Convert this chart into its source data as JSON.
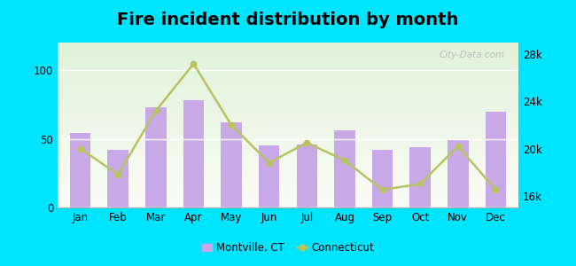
{
  "title": "Fire incident distribution by month",
  "months": [
    "Jan",
    "Feb",
    "Mar",
    "Apr",
    "May",
    "Jun",
    "Jul",
    "Aug",
    "Sep",
    "Oct",
    "Nov",
    "Dec"
  ],
  "bar_values": [
    54,
    42,
    73,
    78,
    62,
    45,
    46,
    56,
    42,
    44,
    50,
    70
  ],
  "line_values": [
    20000,
    17800,
    23200,
    27200,
    22000,
    18800,
    20500,
    19000,
    16500,
    17000,
    20200,
    16500
  ],
  "bar_color": "#c9a8e8",
  "line_color": "#b8c460",
  "line_marker": "o",
  "ylim_left": [
    0,
    120
  ],
  "ylim_right": [
    15000,
    29000
  ],
  "yticks_left": [
    0,
    50,
    100
  ],
  "yticks_right": [
    16000,
    20000,
    24000,
    28000
  ],
  "ytick_right_labels": [
    "16k",
    "20k",
    "24k",
    "28k"
  ],
  "legend_bar_label": "Montville, CT",
  "legend_line_label": "Connecticut",
  "outer_bg": "#00e5ff",
  "title_fontsize": 14,
  "watermark": "City-Data.com"
}
